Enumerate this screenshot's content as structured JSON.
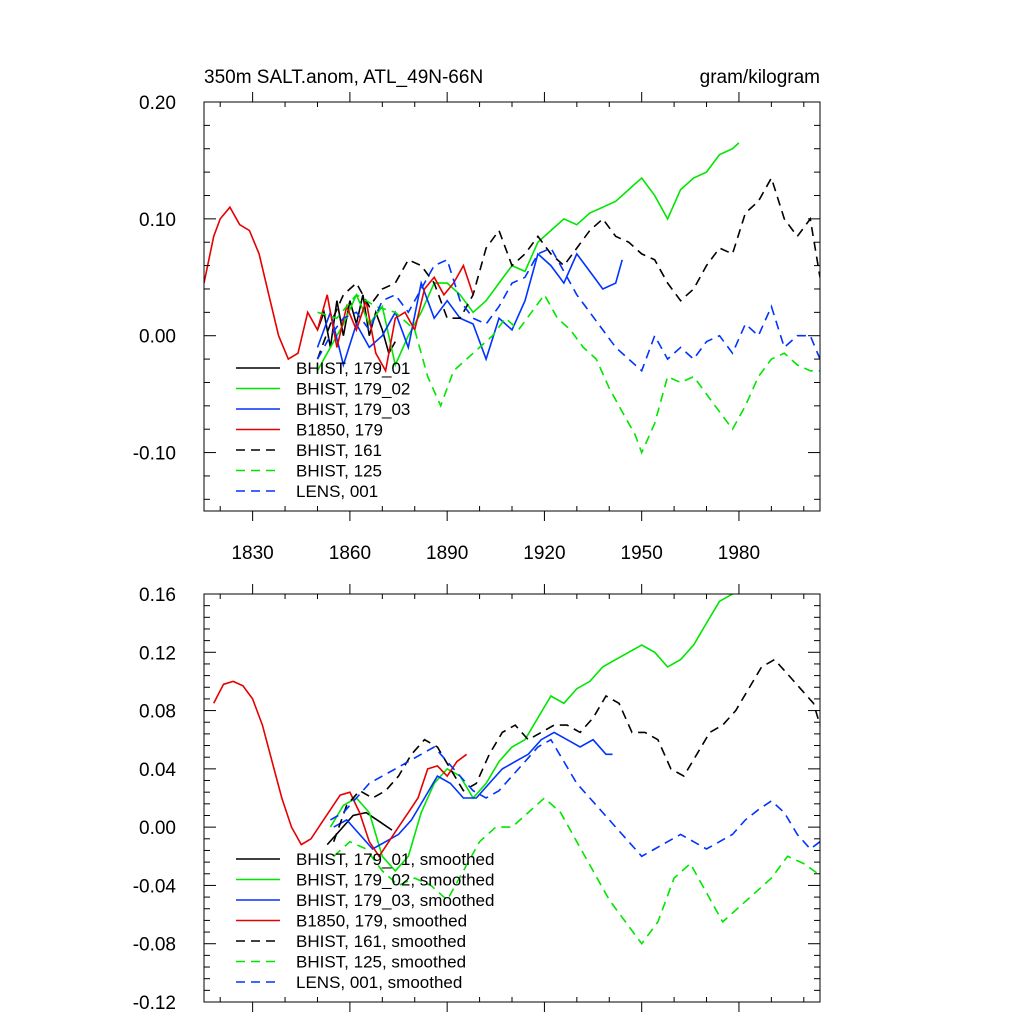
{
  "chart_data": [
    {
      "type": "line",
      "title": "350m SALT.anom, ATL_49N-66N",
      "units": "gram/kilogram",
      "xlim": [
        1815,
        2005
      ],
      "ylim": [
        -0.15,
        0.2
      ],
      "x_ticks": [
        1830,
        1860,
        1890,
        1920,
        1950,
        1980
      ],
      "x_tick_labels": [
        "1830",
        "1860",
        "1890",
        "1920",
        "1950",
        "1980"
      ],
      "y_ticks": [
        -0.1,
        0.0,
        0.1,
        0.2
      ],
      "y_tick_labels": [
        "-0.10",
        "0.00",
        "0.10",
        "0.20"
      ],
      "legend_position": "bottom-left",
      "series": [
        {
          "name": "BHIST, 179_01",
          "color": "#000000",
          "dash": "solid",
          "x": [
            1850,
            1852,
            1854,
            1856,
            1858,
            1860,
            1862,
            1864,
            1866,
            1868,
            1870,
            1872,
            1874
          ],
          "y": [
            0.005,
            0.02,
            -0.01,
            0.03,
            0.0,
            0.03,
            0.01,
            0.035,
            0.0,
            0.02,
            0.005,
            -0.015,
            -0.005
          ]
        },
        {
          "name": "BHIST, 179_02",
          "color": "#00e600",
          "dash": "solid",
          "x": [
            1850,
            1854,
            1858,
            1862,
            1866,
            1870,
            1874,
            1878,
            1882,
            1886,
            1890,
            1894,
            1898,
            1902,
            1906,
            1910,
            1914,
            1918,
            1922,
            1926,
            1930,
            1934,
            1938,
            1942,
            1946,
            1950,
            1954,
            1958,
            1962,
            1966,
            1970,
            1974,
            1978,
            1980
          ],
          "y": [
            -0.03,
            -0.01,
            0.01,
            0.035,
            0.01,
            0.025,
            -0.025,
            0.0,
            0.02,
            0.045,
            0.045,
            0.035,
            0.02,
            0.03,
            0.045,
            0.06,
            0.055,
            0.08,
            0.09,
            0.1,
            0.095,
            0.105,
            0.11,
            0.115,
            0.125,
            0.135,
            0.12,
            0.1,
            0.125,
            0.135,
            0.14,
            0.155,
            0.16,
            0.165
          ]
        },
        {
          "name": "BHIST, 179_03",
          "color": "#0033ff",
          "dash": "solid",
          "x": [
            1850,
            1854,
            1858,
            1862,
            1866,
            1870,
            1874,
            1878,
            1882,
            1886,
            1890,
            1894,
            1898,
            1902,
            1906,
            1910,
            1914,
            1918,
            1922,
            1926,
            1930,
            1934,
            1938,
            1942,
            1944
          ],
          "y": [
            -0.01,
            0.02,
            -0.025,
            0.01,
            -0.01,
            0.0,
            0.02,
            -0.01,
            0.045,
            0.015,
            0.03,
            0.015,
            0.01,
            -0.02,
            0.015,
            0.005,
            0.03,
            0.07,
            0.06,
            0.045,
            0.07,
            0.055,
            0.04,
            0.045,
            0.065
          ]
        },
        {
          "name": "B1850, 179",
          "color": "#e60000",
          "dash": "solid",
          "x": [
            1815,
            1818,
            1820,
            1823,
            1826,
            1829,
            1832,
            1835,
            1838,
            1841,
            1844,
            1847,
            1850,
            1853,
            1856,
            1859,
            1862,
            1865,
            1868,
            1871,
            1874,
            1877,
            1880,
            1883,
            1886,
            1889,
            1892,
            1895,
            1898
          ],
          "y": [
            0.045,
            0.085,
            0.1,
            0.11,
            0.095,
            0.09,
            0.07,
            0.035,
            0.0,
            -0.02,
            -0.015,
            0.02,
            0.005,
            0.035,
            -0.01,
            0.025,
            0.005,
            0.03,
            -0.015,
            -0.03,
            0.015,
            0.02,
            0.005,
            0.04,
            0.05,
            0.035,
            0.045,
            0.06,
            0.035
          ]
        },
        {
          "name": "BHIST, 161",
          "color": "#000000",
          "dash": "dashed",
          "x": [
            1850,
            1854,
            1858,
            1862,
            1866,
            1870,
            1874,
            1878,
            1882,
            1886,
            1890,
            1894,
            1898,
            1902,
            1906,
            1910,
            1914,
            1918,
            1922,
            1926,
            1930,
            1934,
            1938,
            1942,
            1946,
            1950,
            1954,
            1958,
            1962,
            1966,
            1970,
            1974,
            1978,
            1982,
            1986,
            1990,
            1994,
            1998,
            2002,
            2005
          ],
          "y": [
            -0.02,
            0.01,
            0.035,
            0.045,
            0.025,
            0.04,
            0.045,
            0.065,
            0.06,
            0.045,
            0.015,
            0.015,
            0.035,
            0.075,
            0.09,
            0.06,
            0.07,
            0.085,
            0.07,
            0.06,
            0.075,
            0.09,
            0.1,
            0.085,
            0.08,
            0.07,
            0.065,
            0.045,
            0.03,
            0.04,
            0.06,
            0.075,
            0.07,
            0.105,
            0.115,
            0.135,
            0.1,
            0.085,
            0.1,
            0.05
          ]
        },
        {
          "name": "BHIST, 125",
          "color": "#00e600",
          "dash": "dashed",
          "x": [
            1850,
            1856,
            1862,
            1868,
            1874,
            1880,
            1884,
            1888,
            1892,
            1896,
            1900,
            1904,
            1908,
            1912,
            1916,
            1920,
            1924,
            1928,
            1932,
            1936,
            1940,
            1944,
            1948,
            1950,
            1954,
            1958,
            1962,
            1966,
            1970,
            1974,
            1978,
            1982,
            1986,
            1990,
            1994,
            1998,
            2002,
            2005
          ],
          "y": [
            0.02,
            0.015,
            0.035,
            0.025,
            0.02,
            0.005,
            -0.035,
            -0.06,
            -0.03,
            -0.02,
            -0.01,
            0.0,
            0.015,
            0.005,
            0.02,
            0.035,
            0.015,
            0.005,
            -0.01,
            -0.02,
            -0.045,
            -0.065,
            -0.085,
            -0.1,
            -0.075,
            -0.035,
            -0.04,
            -0.035,
            -0.05,
            -0.065,
            -0.08,
            -0.06,
            -0.035,
            -0.02,
            -0.015,
            -0.025,
            -0.03,
            -0.03
          ]
        },
        {
          "name": "LENS, 001",
          "color": "#0033ff",
          "dash": "dashed",
          "x": [
            1850,
            1854,
            1858,
            1862,
            1866,
            1870,
            1874,
            1878,
            1882,
            1886,
            1890,
            1894,
            1898,
            1902,
            1906,
            1910,
            1914,
            1918,
            1922,
            1926,
            1930,
            1934,
            1938,
            1942,
            1946,
            1950,
            1954,
            1958,
            1962,
            1966,
            1970,
            1974,
            1978,
            1982,
            1986,
            1990,
            1994,
            1998,
            2002,
            2005
          ],
          "y": [
            -0.02,
            0.0,
            0.015,
            0.02,
            0.005,
            0.03,
            0.035,
            0.02,
            0.04,
            0.06,
            0.065,
            0.03,
            0.015,
            0.01,
            0.025,
            0.045,
            0.05,
            0.07,
            0.075,
            0.055,
            0.035,
            0.02,
            0.005,
            -0.01,
            -0.02,
            -0.03,
            0.0,
            -0.02,
            -0.01,
            -0.02,
            -0.005,
            0.0,
            -0.015,
            0.01,
            0.0,
            0.025,
            -0.01,
            0.0,
            0.0,
            -0.02
          ]
        }
      ]
    },
    {
      "type": "line",
      "xlim": [
        1815,
        2005
      ],
      "ylim": [
        -0.12,
        0.16
      ],
      "x_ticks": [
        1830,
        1860,
        1890,
        1920,
        1950,
        1980
      ],
      "y_ticks": [
        -0.12,
        -0.08,
        -0.04,
        0.0,
        0.04,
        0.08,
        0.12,
        0.16
      ],
      "y_tick_labels": [
        "-0.12",
        "-0.08",
        "-0.04",
        "0.00",
        "0.04",
        "0.08",
        "0.12",
        "0.16"
      ],
      "legend_position": "bottom-left",
      "series": [
        {
          "name": "BHIST, 179_01, smoothed",
          "color": "#000000",
          "dash": "solid",
          "x": [
            1853,
            1857,
            1861,
            1865,
            1869,
            1873
          ],
          "y": [
            -0.012,
            -0.002,
            0.008,
            0.01,
            0.004,
            -0.002
          ]
        },
        {
          "name": "BHIST, 179_02, smoothed",
          "color": "#00e600",
          "dash": "solid",
          "x": [
            1854,
            1858,
            1862,
            1866,
            1870,
            1874,
            1878,
            1882,
            1886,
            1890,
            1894,
            1898,
            1902,
            1906,
            1910,
            1914,
            1918,
            1922,
            1926,
            1930,
            1934,
            1938,
            1942,
            1946,
            1950,
            1954,
            1958,
            1962,
            1966,
            1970,
            1974,
            1978,
            1980
          ],
          "y": [
            0.0,
            0.015,
            0.02,
            0.01,
            -0.02,
            -0.03,
            -0.02,
            0.01,
            0.03,
            0.04,
            0.035,
            0.02,
            0.03,
            0.045,
            0.055,
            0.06,
            0.075,
            0.09,
            0.085,
            0.095,
            0.1,
            0.11,
            0.115,
            0.12,
            0.125,
            0.12,
            0.11,
            0.115,
            0.125,
            0.14,
            0.155,
            0.16,
            0.165
          ]
        },
        {
          "name": "BHIST, 179_03, smoothed",
          "color": "#0033ff",
          "dash": "solid",
          "x": [
            1855,
            1859,
            1863,
            1867,
            1871,
            1875,
            1879,
            1883,
            1887,
            1891,
            1895,
            1899,
            1903,
            1907,
            1911,
            1915,
            1919,
            1923,
            1927,
            1931,
            1935,
            1939,
            1941
          ],
          "y": [
            0.0,
            0.005,
            -0.005,
            -0.015,
            -0.01,
            -0.005,
            0.005,
            0.02,
            0.035,
            0.03,
            0.02,
            0.02,
            0.03,
            0.04,
            0.045,
            0.05,
            0.06,
            0.065,
            0.06,
            0.055,
            0.06,
            0.05,
            0.05
          ]
        },
        {
          "name": "B1850, 179, smoothed",
          "color": "#e60000",
          "dash": "solid",
          "x": [
            1818,
            1821,
            1824,
            1827,
            1830,
            1833,
            1836,
            1839,
            1842,
            1845,
            1848,
            1851,
            1854,
            1857,
            1860,
            1863,
            1866,
            1869,
            1872,
            1875,
            1878,
            1881,
            1884,
            1887,
            1890,
            1893,
            1896
          ],
          "y": [
            0.085,
            0.098,
            0.1,
            0.097,
            0.088,
            0.07,
            0.045,
            0.02,
            0.0,
            -0.012,
            -0.008,
            0.002,
            0.012,
            0.022,
            0.024,
            0.01,
            -0.01,
            -0.02,
            -0.01,
            0.0,
            0.01,
            0.02,
            0.04,
            0.042,
            0.035,
            0.045,
            0.05
          ]
        },
        {
          "name": "BHIST, 161, smoothed",
          "color": "#000000",
          "dash": "dashed",
          "x": [
            1855,
            1859,
            1863,
            1867,
            1871,
            1875,
            1879,
            1883,
            1887,
            1891,
            1895,
            1899,
            1903,
            1907,
            1911,
            1915,
            1919,
            1923,
            1927,
            1931,
            1935,
            1939,
            1943,
            1947,
            1951,
            1955,
            1959,
            1963,
            1967,
            1971,
            1975,
            1979,
            1983,
            1987,
            1991,
            1995,
            1999,
            2003,
            2005
          ],
          "y": [
            -0.01,
            0.015,
            0.025,
            0.02,
            0.025,
            0.035,
            0.05,
            0.06,
            0.055,
            0.04,
            0.025,
            0.03,
            0.05,
            0.065,
            0.07,
            0.06,
            0.065,
            0.07,
            0.07,
            0.065,
            0.075,
            0.09,
            0.085,
            0.065,
            0.065,
            0.06,
            0.04,
            0.035,
            0.05,
            0.065,
            0.07,
            0.08,
            0.095,
            0.11,
            0.115,
            0.105,
            0.095,
            0.085,
            0.07
          ]
        },
        {
          "name": "BHIST, 125, smoothed",
          "color": "#00e600",
          "dash": "dashed",
          "x": [
            1855,
            1860,
            1865,
            1870,
            1875,
            1880,
            1885,
            1890,
            1895,
            1900,
            1905,
            1910,
            1915,
            1920,
            1925,
            1930,
            1935,
            1940,
            1945,
            1950,
            1955,
            1960,
            1965,
            1970,
            1975,
            1980,
            1985,
            1990,
            1995,
            2000,
            2005
          ],
          "y": [
            -0.02,
            -0.01,
            -0.015,
            -0.03,
            -0.04,
            -0.035,
            -0.04,
            -0.05,
            -0.03,
            -0.01,
            0.0,
            0.0,
            0.01,
            0.02,
            0.01,
            -0.01,
            -0.03,
            -0.05,
            -0.065,
            -0.08,
            -0.065,
            -0.035,
            -0.025,
            -0.045,
            -0.065,
            -0.055,
            -0.045,
            -0.035,
            -0.02,
            -0.025,
            -0.033
          ]
        },
        {
          "name": "LENS, 001, smoothed",
          "color": "#0033ff",
          "dash": "dashed",
          "x": [
            1854,
            1858,
            1862,
            1866,
            1870,
            1874,
            1878,
            1882,
            1886,
            1890,
            1894,
            1898,
            1902,
            1906,
            1910,
            1914,
            1918,
            1922,
            1926,
            1930,
            1934,
            1938,
            1942,
            1946,
            1950,
            1954,
            1958,
            1962,
            1966,
            1970,
            1974,
            1978,
            1982,
            1986,
            1990,
            1994,
            1998,
            2002,
            2005
          ],
          "y": [
            0.005,
            0.01,
            0.02,
            0.03,
            0.035,
            0.04,
            0.045,
            0.05,
            0.055,
            0.045,
            0.035,
            0.025,
            0.02,
            0.025,
            0.035,
            0.045,
            0.055,
            0.06,
            0.045,
            0.03,
            0.02,
            0.01,
            0.0,
            -0.01,
            -0.02,
            -0.015,
            -0.01,
            -0.005,
            -0.01,
            -0.015,
            -0.01,
            -0.005,
            0.005,
            0.012,
            0.018,
            0.01,
            -0.005,
            -0.015,
            -0.01
          ]
        }
      ]
    }
  ]
}
